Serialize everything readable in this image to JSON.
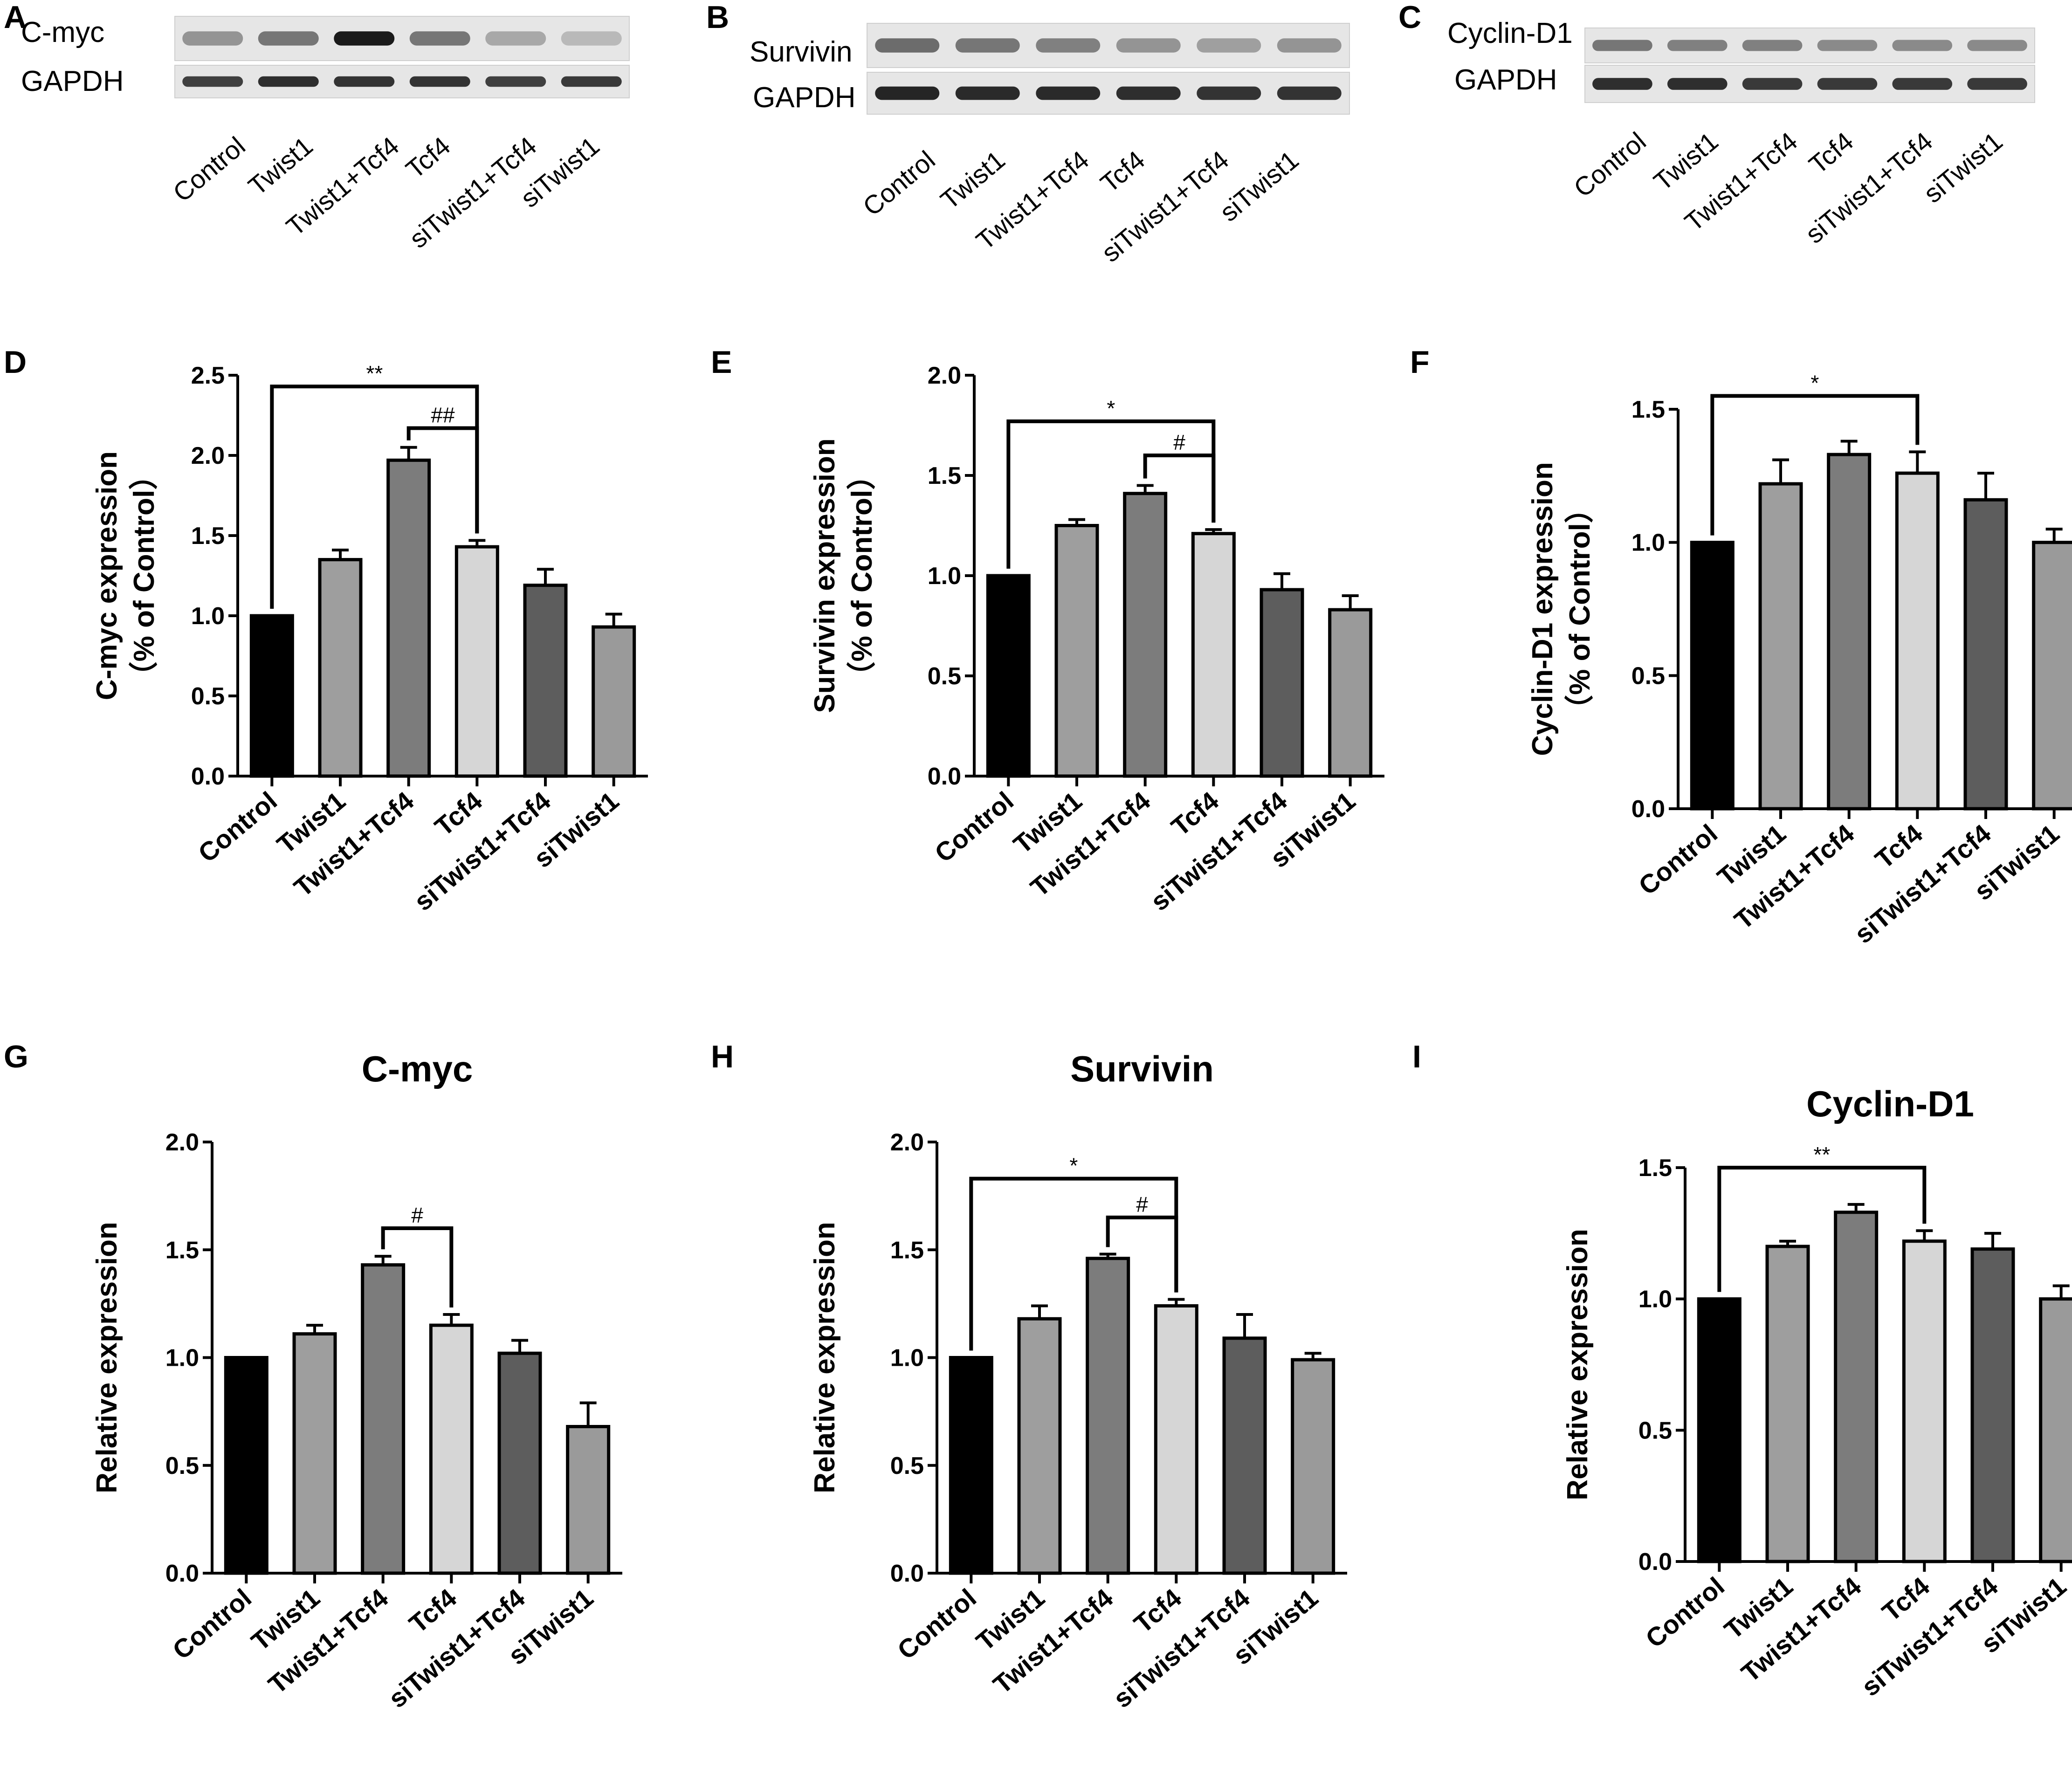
{
  "panel_letters": {
    "a": "A",
    "b": "B",
    "c": "C",
    "d": "D",
    "e": "E",
    "f": "F",
    "g": "G",
    "h": "H",
    "i": "I"
  },
  "blots": [
    {
      "target": "C-myc",
      "loading": "GAPDH",
      "target_intensities": [
        0.4,
        0.55,
        1.0,
        0.55,
        0.3,
        0.22
      ],
      "loading_intensities": [
        0.82,
        0.9,
        0.88,
        0.88,
        0.82,
        0.85
      ]
    },
    {
      "target": "Survivin",
      "loading": "GAPDH",
      "target_intensities": [
        0.6,
        0.55,
        0.5,
        0.4,
        0.35,
        0.4
      ],
      "loading_intensities": [
        0.95,
        0.92,
        0.92,
        0.9,
        0.88,
        0.88
      ]
    },
    {
      "target": "Cyclin-D1",
      "loading": "GAPDH",
      "target_intensities": [
        0.55,
        0.5,
        0.5,
        0.45,
        0.45,
        0.45
      ],
      "loading_intensities": [
        0.9,
        0.9,
        0.85,
        0.85,
        0.85,
        0.85
      ]
    }
  ],
  "lanes": [
    "Control",
    "Twist1",
    "Twist1+Tcf4",
    "Tcf4",
    "siTwist1+Tcf4",
    "siTwist1"
  ],
  "colors": {
    "bars": [
      "#000000",
      "#9e9e9e",
      "#7c7c7c",
      "#d6d6d6",
      "#5d5d5d",
      "#9a9a9a"
    ],
    "blot_bg": "#e6e6e6",
    "band": "#1a1a1a"
  },
  "chart_data": [
    {
      "id": "D",
      "type": "bar",
      "title": "",
      "categories": [
        "Control",
        "Twist1",
        "Twist1+Tcf4",
        "Tcf4",
        "siTwist1+Tcf4",
        "siTwist1"
      ],
      "values": [
        1.0,
        1.35,
        1.97,
        1.43,
        1.19,
        0.93
      ],
      "errors": [
        0,
        0.06,
        0.08,
        0.04,
        0.1,
        0.08
      ],
      "ylabel": "C-myc expression",
      "ylabel2": "（% of Control）",
      "ylim": [
        0,
        2.5
      ],
      "yticks": [
        "0.0",
        "0.5",
        "1.0",
        "1.5",
        "2.0",
        "2.5"
      ],
      "ytick_values": [
        0,
        0.5,
        1.0,
        1.5,
        2.0,
        2.5
      ],
      "brackets": [
        {
          "from": 0,
          "to": 3,
          "label": "**",
          "level": 2.43
        },
        {
          "from": 2,
          "to": 3,
          "label": "##",
          "level": 2.17
        }
      ]
    },
    {
      "id": "E",
      "type": "bar",
      "title": "",
      "categories": [
        "Control",
        "Twist1",
        "Twist1+Tcf4",
        "Tcf4",
        "siTwist1+Tcf4",
        "siTwist1"
      ],
      "values": [
        1.0,
        1.25,
        1.41,
        1.21,
        0.93,
        0.83
      ],
      "errors": [
        0,
        0.03,
        0.04,
        0.02,
        0.08,
        0.07
      ],
      "ylabel": "Survivin expression",
      "ylabel2": "（% of Control）",
      "ylim": [
        0,
        2.0
      ],
      "yticks": [
        "0.0",
        "0.5",
        "1.0",
        "1.5",
        "2.0"
      ],
      "ytick_values": [
        0,
        0.5,
        1.0,
        1.5,
        2.0
      ],
      "brackets": [
        {
          "from": 0,
          "to": 3,
          "label": "*",
          "level": 1.77
        },
        {
          "from": 2,
          "to": 3,
          "label": "#",
          "level": 1.6
        }
      ]
    },
    {
      "id": "F",
      "type": "bar",
      "title": "",
      "categories": [
        "Control",
        "Twist1",
        "Twist1+Tcf4",
        "Tcf4",
        "siTwist1+Tcf4",
        "siTwist1"
      ],
      "values": [
        1.0,
        1.22,
        1.33,
        1.26,
        1.16,
        1.0
      ],
      "errors": [
        0,
        0.09,
        0.05,
        0.08,
        0.1,
        0.05
      ],
      "ylabel": "Cyclin-D1 expression",
      "ylabel2": "（% of Control）",
      "ylim": [
        0,
        1.5
      ],
      "yticks": [
        "0.0",
        "0.5",
        "1.0",
        "1.5"
      ],
      "ytick_values": [
        0,
        0.5,
        1.0,
        1.5
      ],
      "brackets": [
        {
          "from": 0,
          "to": 3,
          "label": "*",
          "level": 1.55
        }
      ]
    },
    {
      "id": "G",
      "type": "bar",
      "title": "C-myc",
      "categories": [
        "Control",
        "Twist1",
        "Twist1+Tcf4",
        "Tcf4",
        "siTwist1+Tcf4",
        "siTwist1"
      ],
      "values": [
        1.0,
        1.11,
        1.43,
        1.15,
        1.02,
        0.68
      ],
      "errors": [
        0,
        0.04,
        0.04,
        0.05,
        0.06,
        0.11
      ],
      "ylabel": "Relative expression",
      "ylabel2": "",
      "ylim": [
        0,
        2.0
      ],
      "yticks": [
        "0.0",
        "0.5",
        "1.0",
        "1.5",
        "2.0"
      ],
      "ytick_values": [
        0,
        0.5,
        1.0,
        1.5,
        2.0
      ],
      "brackets": [
        {
          "from": 2,
          "to": 3,
          "label": "#",
          "level": 1.6
        }
      ]
    },
    {
      "id": "H",
      "type": "bar",
      "title": "Survivin",
      "categories": [
        "Control",
        "Twist1",
        "Twist1+Tcf4",
        "Tcf4",
        "siTwist1+Tcf4",
        "siTwist1"
      ],
      "values": [
        1.0,
        1.18,
        1.46,
        1.24,
        1.09,
        0.99
      ],
      "errors": [
        0,
        0.06,
        0.02,
        0.03,
        0.11,
        0.03
      ],
      "ylabel": "Relative expression",
      "ylabel2": "",
      "ylim": [
        0,
        2.0
      ],
      "yticks": [
        "0.0",
        "0.5",
        "1.0",
        "1.5",
        "2.0"
      ],
      "ytick_values": [
        0,
        0.5,
        1.0,
        1.5,
        2.0
      ],
      "brackets": [
        {
          "from": 0,
          "to": 3,
          "label": "*",
          "level": 1.83
        },
        {
          "from": 2,
          "to": 3,
          "label": "#",
          "level": 1.65
        }
      ]
    },
    {
      "id": "I",
      "type": "bar",
      "title": "Cyclin-D1",
      "categories": [
        "Control",
        "Twist1",
        "Twist1+Tcf4",
        "Tcf4",
        "siTwist1+Tcf4",
        "siTwist1"
      ],
      "values": [
        1.0,
        1.2,
        1.33,
        1.22,
        1.19,
        1.0
      ],
      "errors": [
        0,
        0.02,
        0.03,
        0.04,
        0.06,
        0.05
      ],
      "ylabel": "Relative expression",
      "ylabel2": "",
      "ylim": [
        0,
        1.5
      ],
      "yticks": [
        "0.0",
        "0.5",
        "1.0",
        "1.5"
      ],
      "ytick_values": [
        0,
        0.5,
        1.0,
        1.5
      ],
      "brackets": [
        {
          "from": 0,
          "to": 3,
          "label": "**",
          "level": 1.5
        }
      ]
    }
  ]
}
